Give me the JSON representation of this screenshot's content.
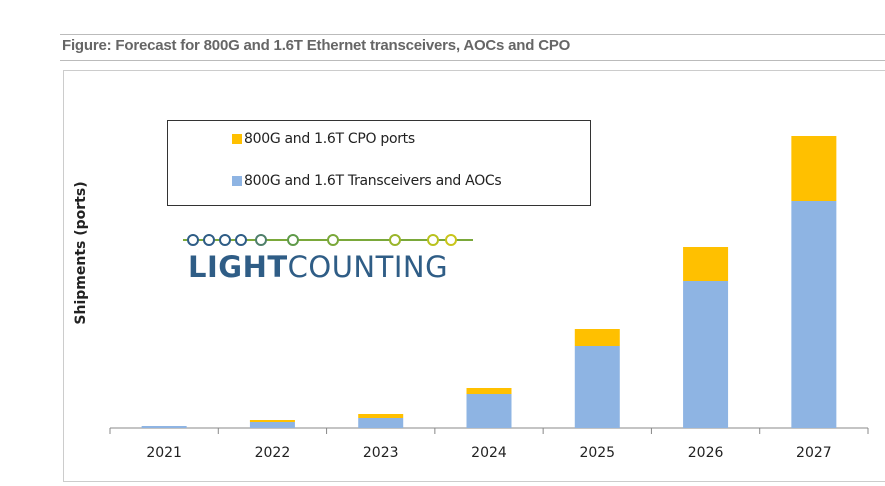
{
  "chart_data": {
    "type": "bar",
    "stacked": true,
    "title": "Figure: Forecast for 800G and 1.6T Ethernet transceivers, AOCs and CPO",
    "xlabel": "",
    "ylabel": "Shipments (ports)",
    "categories": [
      "2021",
      "2022",
      "2023",
      "2024",
      "2025",
      "2026",
      "2027"
    ],
    "series": [
      {
        "name": "800G and 1.6T Transceivers and AOCs",
        "color": "#8eb4e3",
        "values": [
          2,
          6,
          10,
          34,
          82,
          147,
          227
        ]
      },
      {
        "name": "800G and 1.6T CPO ports",
        "color": "#ffc000",
        "values": [
          0,
          2,
          4,
          6,
          17,
          34,
          65
        ]
      }
    ],
    "ylim": [
      0,
      300
    ],
    "grid": false,
    "legend_placement": "top-left",
    "note": "relative units, no y tick labels shown"
  },
  "logo": {
    "text": "LIGHTCOUNTING"
  }
}
